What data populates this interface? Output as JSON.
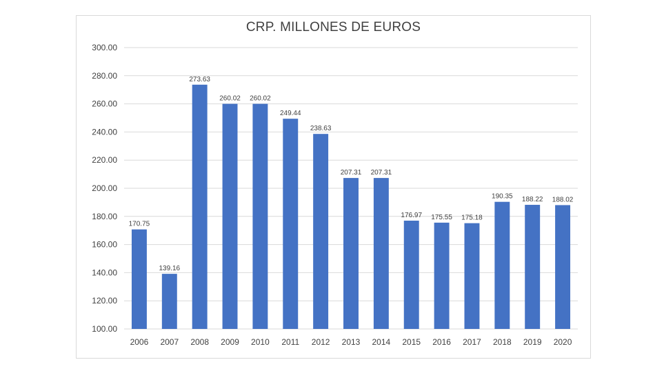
{
  "chart_data": {
    "type": "bar",
    "title": "CRP. MILLONES DE EUROS",
    "xlabel": "",
    "ylabel": "",
    "categories": [
      "2006",
      "2007",
      "2008",
      "2009",
      "2010",
      "2011",
      "2012",
      "2013",
      "2014",
      "2015",
      "2016",
      "2017",
      "2018",
      "2019",
      "2020"
    ],
    "values": [
      170.75,
      139.16,
      273.63,
      260.02,
      260.02,
      249.44,
      238.63,
      207.31,
      207.31,
      176.97,
      175.55,
      175.18,
      190.35,
      188.22,
      188.02
    ],
    "data_labels": [
      "170.75",
      "139.16",
      "273.63",
      "260.02",
      "260.02",
      "249.44",
      "238.63",
      "207.31",
      "207.31",
      "176.97",
      "175.55",
      "175.18",
      "190.35",
      "188.22",
      "188.02"
    ],
    "ylim": [
      100,
      300
    ],
    "yticks": [
      100,
      120,
      140,
      160,
      180,
      200,
      220,
      240,
      260,
      280,
      300
    ],
    "ytick_labels": [
      "100.00",
      "120.00",
      "140.00",
      "160.00",
      "180.00",
      "200.00",
      "220.00",
      "240.00",
      "260.00",
      "280.00",
      "300.00"
    ],
    "grid": true,
    "legend": "none",
    "colors": {
      "bar": "#4472c4",
      "grid": "#d9d9d9",
      "text": "#404040"
    }
  }
}
